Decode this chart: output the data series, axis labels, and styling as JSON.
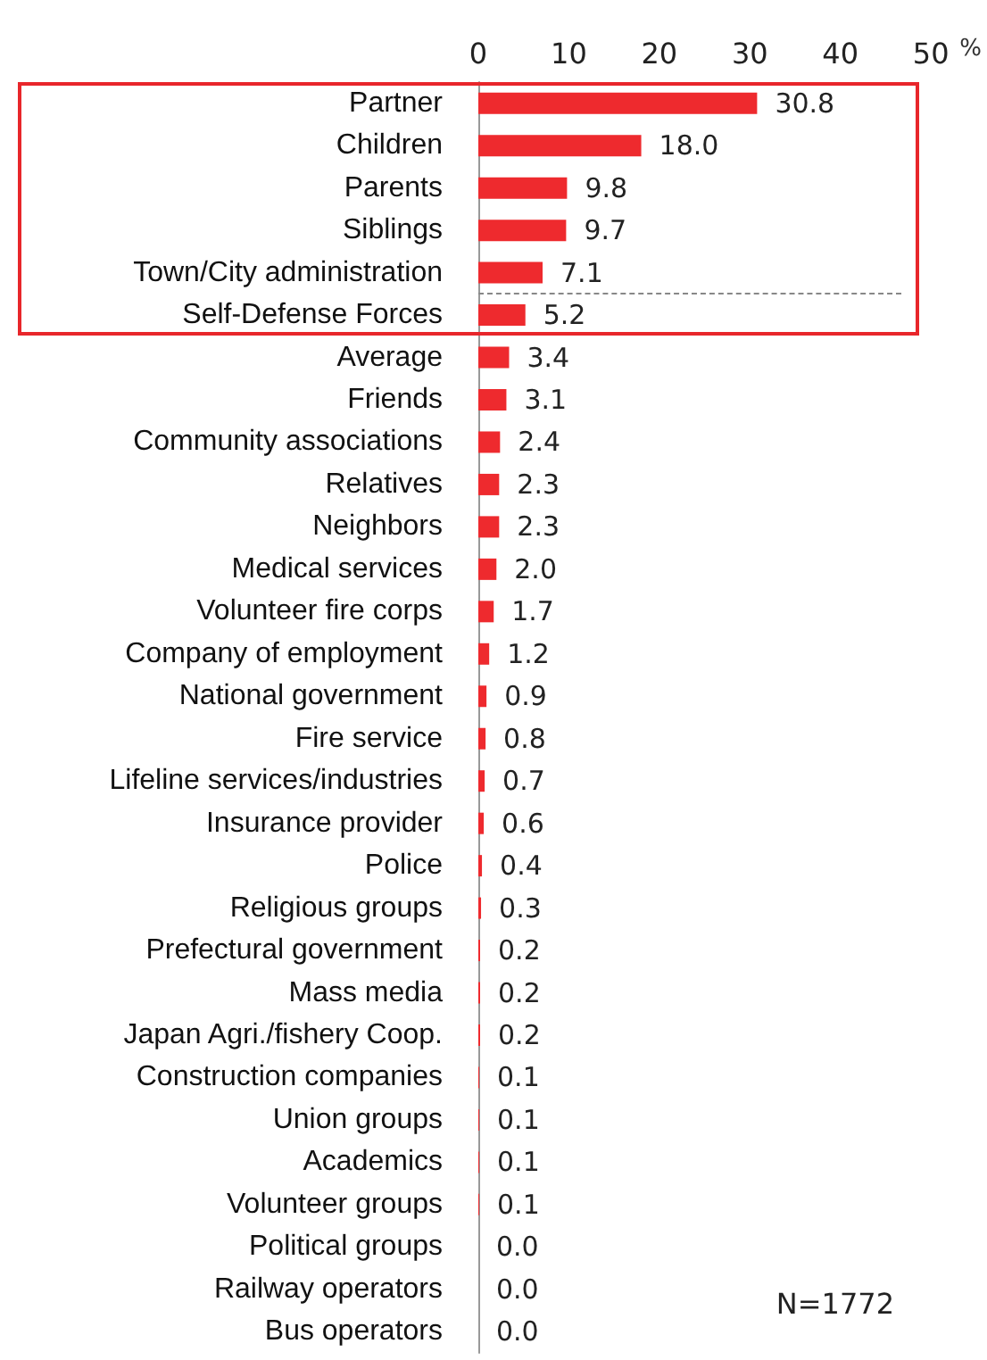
{
  "chart_data": {
    "type": "bar",
    "orientation": "horizontal",
    "categories": [
      "Partner",
      "Children",
      "Parents",
      "Siblings",
      "Town/City administration",
      "Self-Defense Forces",
      "Average",
      "Friends",
      "Community associations",
      "Relatives",
      "Neighbors",
      "Medical services",
      "Volunteer fire corps",
      "Company of employment",
      "National government",
      "Fire service",
      "Lifeline services/industries",
      "Insurance provider",
      "Police",
      "Religious groups",
      "Prefectural government",
      "Mass media",
      "Japan Agri./fishery Coop.",
      "Construction companies",
      "Union groups",
      "Academics",
      "Volunteer groups",
      "Political groups",
      "Railway operators",
      "Bus operators"
    ],
    "values": [
      30.8,
      18.0,
      9.8,
      9.7,
      7.1,
      5.2,
      3.4,
      3.1,
      2.4,
      2.3,
      2.3,
      2.0,
      1.7,
      1.2,
      0.9,
      0.8,
      0.7,
      0.6,
      0.4,
      0.3,
      0.2,
      0.2,
      0.2,
      0.1,
      0.1,
      0.1,
      0.1,
      0.0,
      0.0,
      0.0
    ],
    "value_labels": [
      "30.8",
      "18.0",
      "9.8",
      "9.7",
      "7.1",
      "5.2",
      "3.4",
      "3.1",
      "2.4",
      "2.3",
      "2.3",
      "2.0",
      "1.7",
      "1.2",
      "0.9",
      "0.8",
      "0.7",
      "0.6",
      "0.4",
      "0.3",
      "0.2",
      "0.2",
      "0.2",
      "0.1",
      "0.1",
      "0.1",
      "0.1",
      "0.0",
      "0.0",
      "0.0"
    ],
    "color": "#ee2a2e",
    "xlim": [
      0,
      50
    ],
    "xticks": [
      0,
      10,
      20,
      30,
      40,
      50
    ],
    "xlabel": "%",
    "annotations": [
      "N=1772"
    ]
  }
}
